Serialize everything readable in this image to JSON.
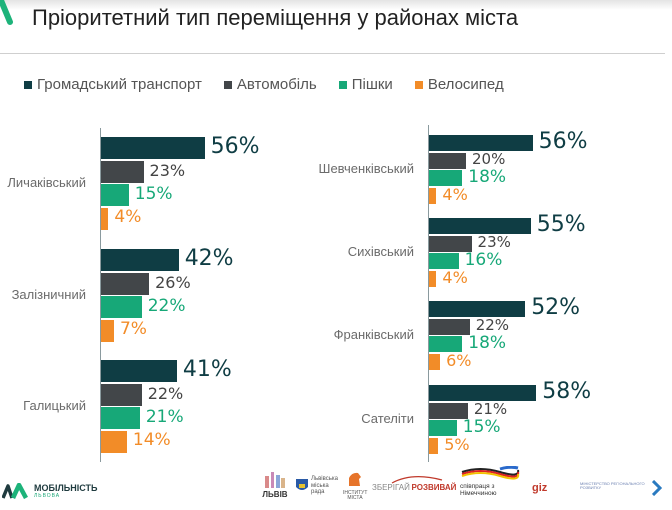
{
  "header": {
    "title": "Пріоритетний тип переміщення у районах міста"
  },
  "colors": {
    "public_transport": "#0f3d44",
    "car": "#424649",
    "walk": "#17a878",
    "bike": "#f28c28",
    "accent": "#1db37a"
  },
  "chart_data": {
    "type": "bar",
    "orientation": "horizontal",
    "title": "Пріоритетний тип переміщення у районах міста",
    "xlabel": "",
    "ylabel": "",
    "unit": "%",
    "grid": false,
    "legend_position": "top-left",
    "legend": [
      "Громадський транспорт",
      "Автомобіль",
      "Пішки",
      "Велосипед"
    ],
    "panels": [
      {
        "categories": [
          "Личаківський",
          "Залізничний",
          "Галицький"
        ],
        "series": [
          {
            "name": "Громадський транспорт",
            "values": [
              56,
              42,
              41
            ]
          },
          {
            "name": "Автомобіль",
            "values": [
              23,
              26,
              22
            ]
          },
          {
            "name": "Пішки",
            "values": [
              15,
              22,
              21
            ]
          },
          {
            "name": "Велосипед",
            "values": [
              4,
              7,
              14
            ]
          }
        ]
      },
      {
        "categories": [
          "Шевченківський",
          "Сихівський",
          "Франківський",
          "Сателіти"
        ],
        "series": [
          {
            "name": "Громадський транспорт",
            "values": [
              56,
              55,
              52,
              58
            ]
          },
          {
            "name": "Автомобіль",
            "values": [
              20,
              23,
              22,
              21
            ]
          },
          {
            "name": "Пішки",
            "values": [
              18,
              16,
              18,
              15
            ]
          },
          {
            "name": "Велосипед",
            "values": [
              4,
              4,
              6,
              5
            ]
          }
        ]
      }
    ]
  },
  "footer": {
    "mobility_logo": "МОБІЛЬНІСТЬ",
    "mobility_sub": "ЛЬВОВА",
    "lviv_logo": "ЛЬВІВ",
    "city_council": "Львівська міська рада",
    "institute": "ІНСТИТУТ МІСТА",
    "slogan_a": "ЗБЕРІГАЙ",
    "slogan_b": "РОЗВИВАЙ",
    "germany": "співпраця з Німеччиною",
    "giz": "giz",
    "ministry": "МІНІСТЕРСТВО РЕГІОНАЛЬНОГО РОЗВИТКУ"
  }
}
